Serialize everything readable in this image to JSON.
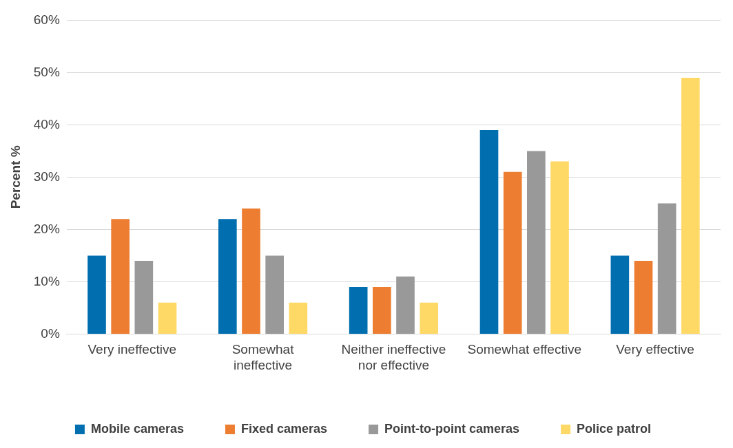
{
  "chart_data": {
    "type": "bar",
    "ylabel": "Percent %",
    "categories": [
      "Very ineffective",
      "Somewhat ineffective",
      "Neither ineffective nor effective",
      "Somewhat effective",
      "Very effective"
    ],
    "series": [
      {
        "name": "Mobile cameras",
        "color": "#006eaf",
        "values": [
          15,
          22,
          9,
          39,
          15
        ]
      },
      {
        "name": "Fixed cameras",
        "color": "#ed7d31",
        "values": [
          22,
          24,
          9,
          31,
          14
        ]
      },
      {
        "name": "Point-to-point cameras",
        "color": "#999999",
        "values": [
          14,
          15,
          11,
          35,
          25
        ]
      },
      {
        "name": "Police patrol",
        "color": "#ffd966",
        "values": [
          6,
          6,
          6,
          33,
          49
        ]
      }
    ],
    "ylim": [
      0,
      60
    ],
    "yticks": [
      {
        "value": 0,
        "label": "0%"
      },
      {
        "value": 10,
        "label": "10%"
      },
      {
        "value": 20,
        "label": "20%"
      },
      {
        "value": 30,
        "label": "30%"
      },
      {
        "value": 40,
        "label": "40%"
      },
      {
        "value": 50,
        "label": "50%"
      },
      {
        "value": 60,
        "label": "60%"
      }
    ],
    "grid": "y",
    "legend": "bottom"
  }
}
